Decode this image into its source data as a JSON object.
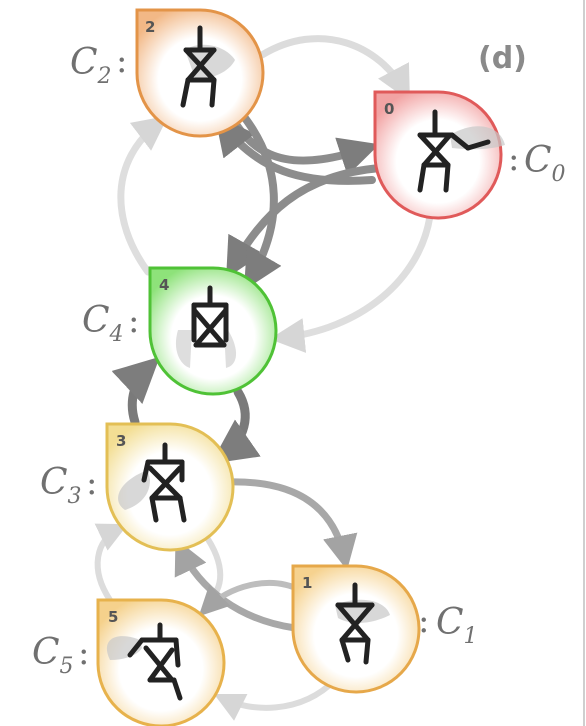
{
  "figure": {
    "panel_label": "(d)",
    "description_colors": {
      "red": "#e05a5a",
      "orange": "#e89a4c",
      "green": "#4cc832",
      "yellow": "#e6c04a",
      "light_orange": "#f0b548",
      "edge_dark": "#8c8c8c",
      "edge_light": "#d9d9d9"
    }
  },
  "nodes": [
    {
      "id": "0",
      "cluster_letter": "C",
      "cluster_sub": "0",
      "color": "#e05a5a",
      "fill": "#f7c9c9"
    },
    {
      "id": "1",
      "cluster_letter": "C",
      "cluster_sub": "1",
      "color": "#e6a84a",
      "fill": "#fbe3b8"
    },
    {
      "id": "2",
      "cluster_letter": "C",
      "cluster_sub": "2",
      "color": "#e39448",
      "fill": "#f9d6b0"
    },
    {
      "id": "3",
      "cluster_letter": "C",
      "cluster_sub": "3",
      "color": "#e3bf55",
      "fill": "#faeec4"
    },
    {
      "id": "4",
      "cluster_letter": "C",
      "cluster_sub": "4",
      "color": "#4fc236",
      "fill": "#c9f0bd"
    },
    {
      "id": "5",
      "cluster_letter": "C",
      "cluster_sub": "5",
      "color": "#e7b24c",
      "fill": "#fbe6bd"
    }
  ],
  "edges": [
    {
      "from": "0",
      "to": "2",
      "weight": "light"
    },
    {
      "from": "2",
      "to": "0",
      "weight": "dark"
    },
    {
      "from": "0",
      "to": "4",
      "weight": "dark"
    },
    {
      "from": "4",
      "to": "0",
      "weight": "light"
    },
    {
      "from": "4",
      "to": "2",
      "weight": "light"
    },
    {
      "from": "2",
      "to": "4",
      "weight": "dark"
    },
    {
      "from": "4",
      "to": "3",
      "weight": "dark"
    },
    {
      "from": "3",
      "to": "4",
      "weight": "dark"
    },
    {
      "from": "3",
      "to": "1",
      "weight": "medium"
    },
    {
      "from": "1",
      "to": "3",
      "weight": "medium"
    },
    {
      "from": "3",
      "to": "5",
      "weight": "light"
    },
    {
      "from": "5",
      "to": "3",
      "weight": "light"
    },
    {
      "from": "1",
      "to": "5",
      "weight": "medium"
    },
    {
      "from": "5",
      "to": "1",
      "weight": "light"
    }
  ]
}
